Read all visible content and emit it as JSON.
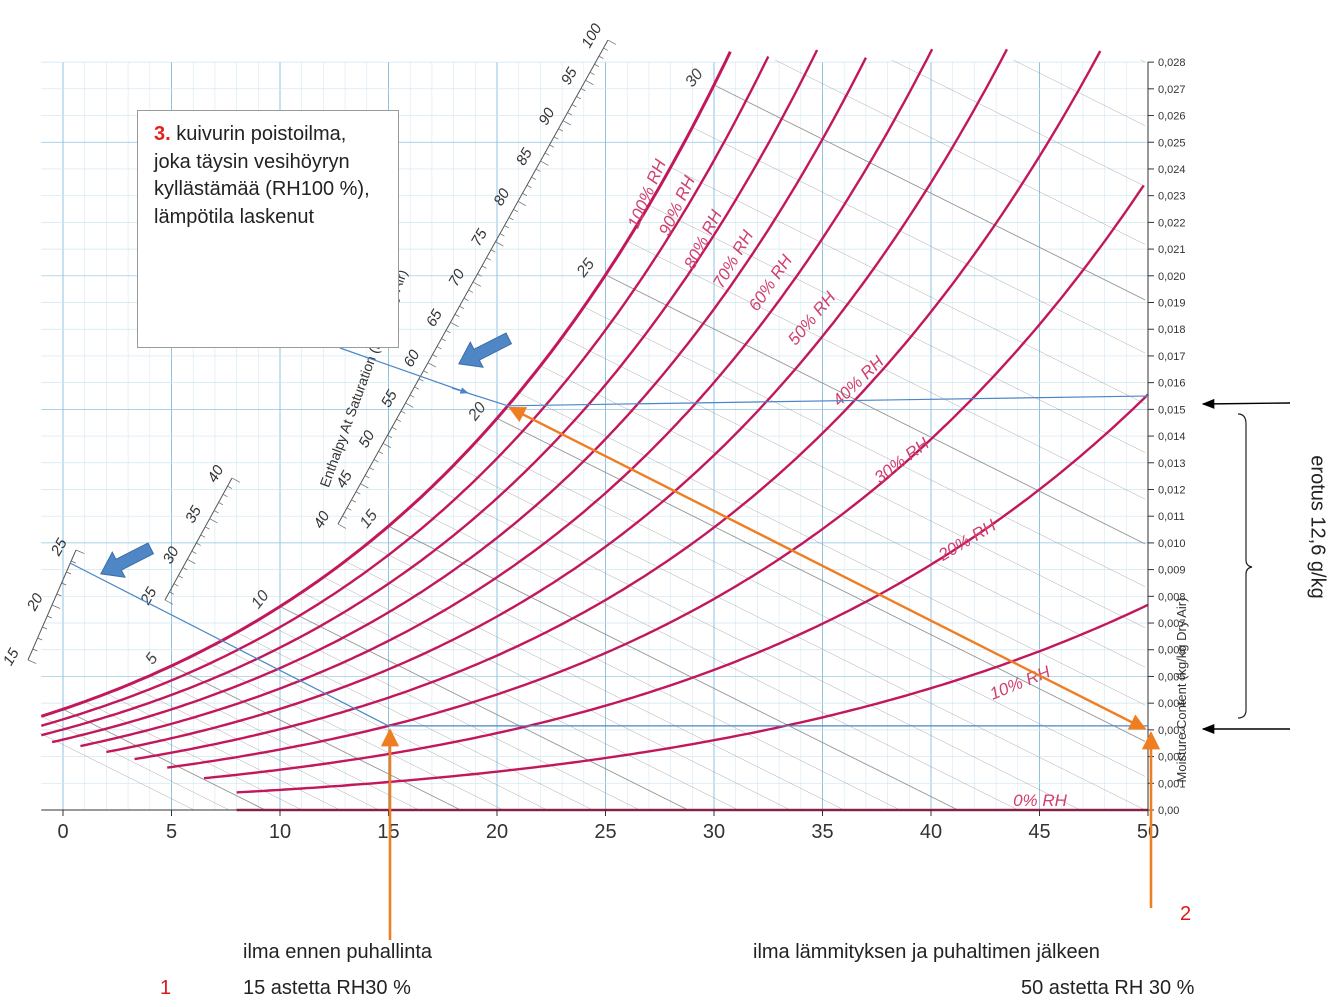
{
  "chart_data": {
    "type": "psychrometric",
    "title": "",
    "xlabel": "",
    "ylabel": "Moisture Content (kg/kg Dry Air)",
    "enthalpy_scale_label": "Enthalpy At Saturation (kJ/kg Dry Air)",
    "xlim": [
      0,
      50
    ],
    "ylim": [
      0,
      0.028
    ],
    "x_ticks": [
      "0",
      "5",
      "10",
      "15",
      "20",
      "25",
      "30",
      "35",
      "40",
      "45",
      "50"
    ],
    "y_ticks": [
      "0,00",
      "0,001",
      "0,002",
      "0,003",
      "0,004",
      "0,005",
      "0,006",
      "0,007",
      "0,008",
      "0,009",
      "0,010",
      "0,011",
      "0,012",
      "0,013",
      "0,014",
      "0,015",
      "0,016",
      "0,017",
      "0,018",
      "0,019",
      "0,020",
      "0,021",
      "0,022",
      "0,023",
      "0,024",
      "0,025",
      "0,026",
      "0,027",
      "0,028"
    ],
    "rh_curves": [
      {
        "rh": 0,
        "label": "0% RH"
      },
      {
        "rh": 10,
        "label": "10% RH"
      },
      {
        "rh": 20,
        "label": "20% RH"
      },
      {
        "rh": 30,
        "label": "30% RH"
      },
      {
        "rh": 40,
        "label": "40% RH"
      },
      {
        "rh": 50,
        "label": "50% RH"
      },
      {
        "rh": 60,
        "label": "60% RH"
      },
      {
        "rh": 70,
        "label": "70% RH"
      },
      {
        "rh": 80,
        "label": "80% RH"
      },
      {
        "rh": 90,
        "label": "90% RH"
      },
      {
        "rh": 100,
        "label": "100% RH"
      }
    ],
    "wet_bulb_labels": [
      "5",
      "10",
      "15",
      "20",
      "25",
      "30"
    ],
    "enthalpy_scale_lower": [
      "15",
      "20",
      "25"
    ],
    "enthalpy_scale_middle": [
      "25",
      "30",
      "35",
      "40"
    ],
    "enthalpy_scale_upper": [
      "40",
      "45",
      "50",
      "55",
      "60",
      "65",
      "70",
      "75",
      "80",
      "85",
      "90",
      "95",
      "100"
    ],
    "points": [
      {
        "id": "1",
        "t": 15,
        "rh": 30
      },
      {
        "id": "2",
        "t": 50,
        "rh": 30
      },
      {
        "id": "3",
        "t": 20.5,
        "rh": 100
      }
    ],
    "colors": {
      "rh_curve": "#c2185b",
      "grid": "#8fc3e0",
      "orange": "#ef7d22",
      "blue_line": "#4a86c8",
      "arrow_fill": "#4f86c6",
      "diag": "#8a8a8a"
    }
  },
  "callout": {
    "number": "3.",
    "text": "kuivurin poistoilma, joka täysin vesihöyryn kyllästämää (RH100 %), lämpötila laskenut"
  },
  "annotations": {
    "point1_number": "1",
    "point1_title": "ilma ennen puhallinta",
    "point1_values": "15 astetta RH30 %",
    "point2_number": "2",
    "point2_title": "ilma lämmityksen ja puhaltimen jälkeen",
    "point2_values": "50 astetta RH 30 %",
    "difference_label": "erotus 12,6 g/kg"
  }
}
